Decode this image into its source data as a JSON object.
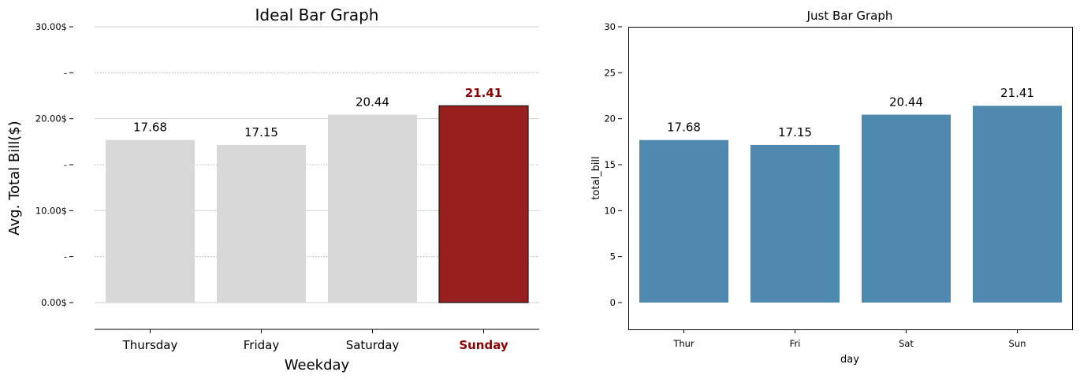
{
  "colors": {
    "highlight": "#8b0000",
    "highlight_fill": "#971f20",
    "muted_bar": "#d8d8d8",
    "blue_bar": "#5089b0",
    "grid": "#cfcfcf"
  },
  "chart_data": [
    {
      "type": "bar",
      "title": "Ideal Bar Graph",
      "xlabel": "Weekday",
      "ylabel": "Avg. Total Bill($)",
      "categories": [
        "Thursday",
        "Friday",
        "Saturday",
        "Sunday"
      ],
      "values": [
        17.68,
        17.15,
        20.44,
        21.41
      ],
      "value_labels": [
        "17.68",
        "17.15",
        "20.44",
        "21.41"
      ],
      "highlight_index": 3,
      "ylim": [
        -3,
        30
      ],
      "y_ticks": [
        0,
        5,
        10,
        15,
        20,
        25,
        30
      ],
      "y_tick_labels": [
        "0.00$",
        "-",
        "10.00$",
        "-",
        "20.00$",
        "-",
        "30.00$"
      ],
      "grid": true
    },
    {
      "type": "bar",
      "title": "Just Bar Graph",
      "xlabel": "day",
      "ylabel": "total_bill",
      "categories": [
        "Thur",
        "Fri",
        "Sat",
        "Sun"
      ],
      "values": [
        17.68,
        17.15,
        20.44,
        21.41
      ],
      "value_labels": [
        "17.68",
        "17.15",
        "20.44",
        "21.41"
      ],
      "ylim": [
        -3,
        30
      ],
      "y_ticks": [
        0,
        5,
        10,
        15,
        20,
        25,
        30
      ],
      "y_tick_labels": [
        "0",
        "5",
        "10",
        "15",
        "20",
        "25",
        "30"
      ],
      "grid": false
    }
  ]
}
